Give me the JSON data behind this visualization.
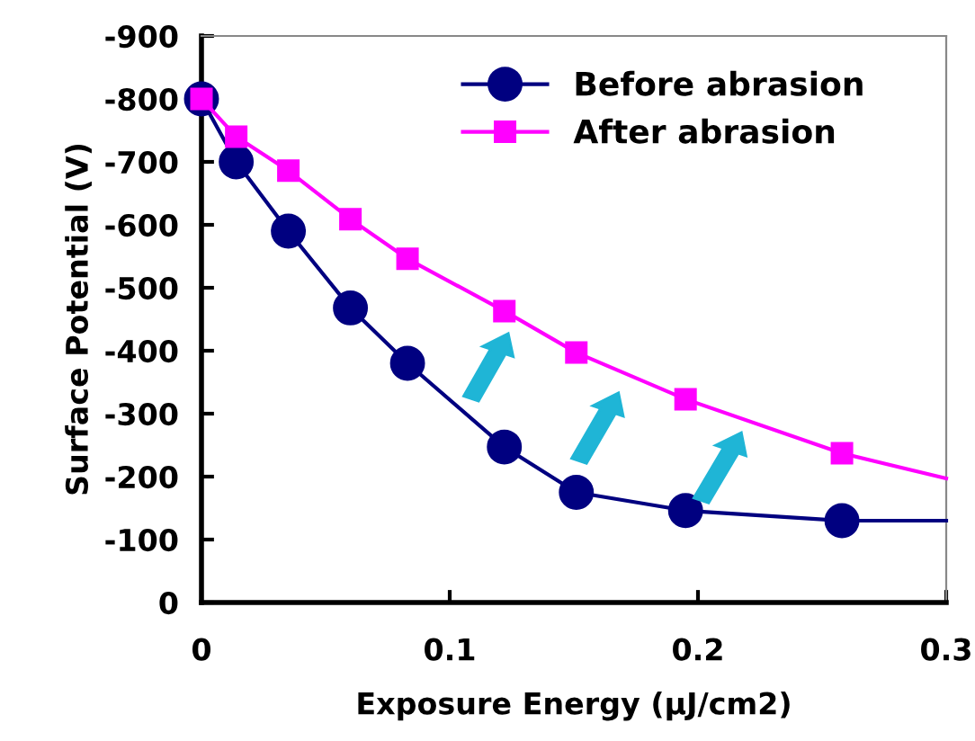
{
  "chart_data": {
    "type": "line",
    "xlabel": "Exposure Energy (μJ/cm2)",
    "ylabel": "Surface Potential (V)",
    "xlim": [
      0,
      0.3
    ],
    "xticks": [
      0,
      0.1,
      0.2,
      0.3
    ],
    "ylim": [
      0,
      -900
    ],
    "yticks": [
      -900,
      -800,
      -700,
      -600,
      -500,
      -400,
      -300,
      -200,
      -100,
      0
    ],
    "grid": false,
    "legend": "top right",
    "line_style": "solid",
    "series": [
      {
        "name": "Before abrasion",
        "color": "#000080",
        "marker": "circle",
        "x": [
          0,
          0.014,
          0.035,
          0.06,
          0.083,
          0.122,
          0.151,
          0.195,
          0.258
        ],
        "values": [
          -800,
          -700,
          -590,
          -468,
          -380,
          -247,
          -175,
          -146,
          -130
        ]
      },
      {
        "name": "After abrasion",
        "color": "#ff00ff",
        "marker": "square",
        "x": [
          0,
          0.014,
          0.035,
          0.06,
          0.083,
          0.122,
          0.151,
          0.195,
          0.258
        ],
        "values": [
          -800,
          -740,
          -686,
          -609,
          -546,
          -463,
          -397,
          -323,
          -237
        ]
      },
      {
        "color": "#000080",
        "marker": "none",
        "x": [
          0.258,
          0.3
        ],
        "values": [
          -130,
          -130
        ]
      },
      {
        "color": "#ff00ff",
        "marker": "none",
        "x": [
          0.258,
          0.3
        ],
        "values": [
          -237,
          -197
        ]
      }
    ]
  }
}
